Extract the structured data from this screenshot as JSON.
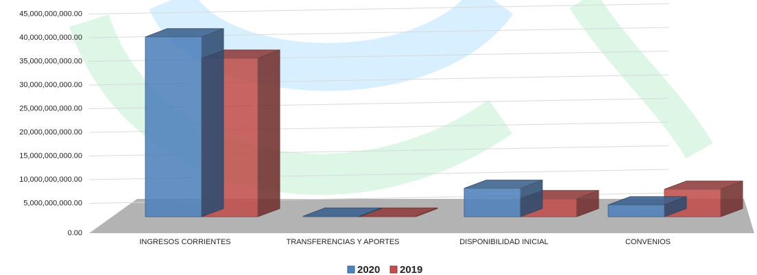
{
  "chart_data": {
    "type": "bar3d",
    "categories": [
      "INGRESOS CORRIENTES",
      "TRANSFERENCIAS Y APORTES",
      "DISPONIBILIDAD INICIAL",
      "CONVENIOS"
    ],
    "series": [
      {
        "name": "2020",
        "color": "#4f81bd",
        "values": [
          38000000000,
          100000000,
          6000000000,
          2500000000
        ]
      },
      {
        "name": "2019",
        "color": "#c0504d",
        "values": [
          33500000000,
          100000000,
          3800000000,
          5800000000
        ]
      }
    ],
    "ylim": [
      0,
      45000000000
    ],
    "yticks": [
      {
        "value": 0,
        "label": "0.00"
      },
      {
        "value": 5000000000,
        "label": "5,000,000,000.00"
      },
      {
        "value": 10000000000,
        "label": "10,000,000,000.00"
      },
      {
        "value": 15000000000,
        "label": "15,000,000,000.00"
      },
      {
        "value": 20000000000,
        "label": "20,000,000,000.00"
      },
      {
        "value": 25000000000,
        "label": "25,000,000,000.00"
      },
      {
        "value": 30000000000,
        "label": "30,000,000,000.00"
      },
      {
        "value": 35000000000,
        "label": "35,000,000,000.00"
      },
      {
        "value": 40000000000,
        "label": "40,000,000,000.00"
      },
      {
        "value": 45000000000,
        "label": "45,000,000,000.00"
      }
    ],
    "grid": true,
    "legend": "bottom"
  }
}
